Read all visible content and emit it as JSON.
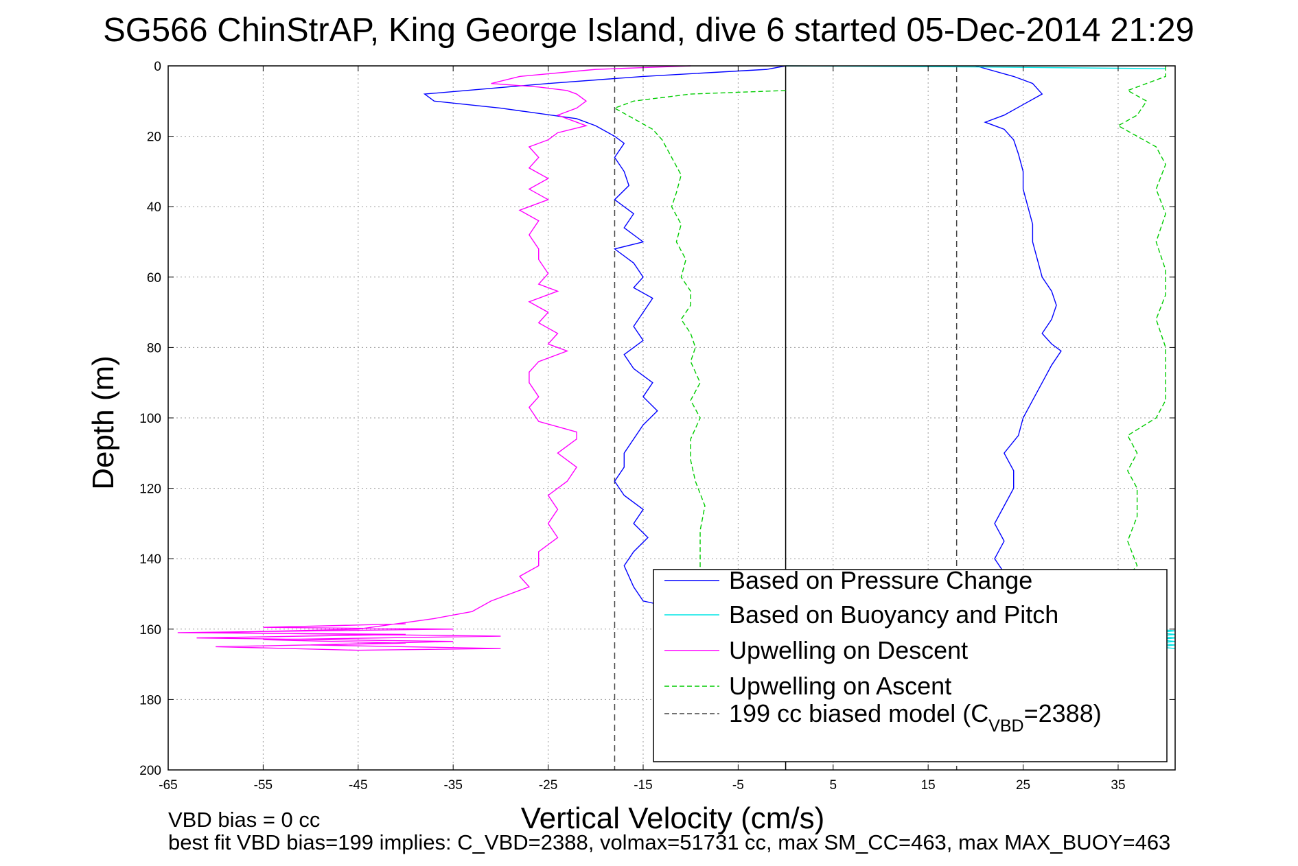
{
  "chart_data": {
    "type": "line",
    "title": "SG566 ChinStrAP, King George Island, dive 6 started 05-Dec-2014 21:29",
    "xlabel": "Vertical Velocity (cm/s)",
    "ylabel": "Depth (m)",
    "xlim": [
      -65,
      41
    ],
    "ylim": [
      0,
      200
    ],
    "y_reversed": true,
    "xticks": [
      -65,
      -55,
      -45,
      -35,
      -25,
      -15,
      -5,
      5,
      15,
      25,
      35
    ],
    "xtick_labels": [
      "-65",
      "-55",
      "-45",
      "-35",
      "-25",
      "-15",
      "-5",
      "5",
      "15",
      "25",
      "35"
    ],
    "yticks": [
      0,
      20,
      40,
      60,
      80,
      100,
      120,
      140,
      160,
      180,
      200
    ],
    "ytick_labels": [
      "0",
      "20",
      "40",
      "60",
      "80",
      "100",
      "120",
      "140",
      "160",
      "180",
      "200"
    ],
    "grid": true,
    "legend_position": "bottom-right",
    "reference_lines": [
      {
        "x": 0,
        "style": "solid",
        "color": "#000000"
      },
      {
        "x": -18,
        "style": "dashed",
        "color": "#444444"
      },
      {
        "x": 18,
        "style": "dashed",
        "color": "#444444"
      }
    ],
    "series": [
      {
        "name": "Based on Pressure Change",
        "color": "#0000ff",
        "dash": "solid",
        "points": [
          [
            0,
            0
          ],
          [
            -2,
            1
          ],
          [
            -15,
            3
          ],
          [
            -25,
            5
          ],
          [
            -38,
            8
          ],
          [
            -37,
            10
          ],
          [
            -30,
            12
          ],
          [
            -22,
            15
          ],
          [
            -20,
            17
          ],
          [
            -18,
            20
          ],
          [
            -17,
            22
          ],
          [
            -18,
            26
          ],
          [
            -17,
            30
          ],
          [
            -16.5,
            34
          ],
          [
            -18,
            38
          ],
          [
            -16,
            42
          ],
          [
            -17,
            46
          ],
          [
            -15,
            50
          ],
          [
            -18,
            52
          ],
          [
            -16,
            56
          ],
          [
            -15,
            60
          ],
          [
            -16,
            63
          ],
          [
            -14,
            66
          ],
          [
            -15,
            70
          ],
          [
            -16,
            74
          ],
          [
            -15,
            78
          ],
          [
            -17,
            82
          ],
          [
            -16,
            86
          ],
          [
            -14,
            90
          ],
          [
            -15,
            94
          ],
          [
            -13.5,
            98
          ],
          [
            -15,
            102
          ],
          [
            -16,
            106
          ],
          [
            -17,
            110
          ],
          [
            -17,
            114
          ],
          [
            -18,
            118
          ],
          [
            -17,
            122
          ],
          [
            -15,
            126
          ],
          [
            -16,
            130
          ],
          [
            -14.5,
            134
          ],
          [
            -16,
            138
          ],
          [
            -17,
            142
          ],
          [
            -16,
            148
          ],
          [
            -15,
            152
          ],
          [
            -10,
            155
          ]
        ],
        "points_right": [
          [
            20,
            0
          ],
          [
            24,
            3
          ],
          [
            26,
            5
          ],
          [
            27,
            8
          ],
          [
            25,
            11
          ],
          [
            23,
            14
          ],
          [
            21,
            16
          ],
          [
            23,
            18
          ],
          [
            24,
            21
          ],
          [
            24.5,
            25
          ],
          [
            25,
            30
          ],
          [
            25,
            35
          ],
          [
            25.5,
            40
          ],
          [
            26,
            45
          ],
          [
            26,
            50
          ],
          [
            26.5,
            55
          ],
          [
            27,
            60
          ],
          [
            28,
            64
          ],
          [
            28.5,
            68
          ],
          [
            28,
            72
          ],
          [
            27,
            76
          ],
          [
            28,
            79
          ],
          [
            29,
            81
          ],
          [
            28,
            85
          ],
          [
            27,
            90
          ],
          [
            26,
            95
          ],
          [
            25,
            100
          ],
          [
            24.5,
            105
          ],
          [
            23,
            110
          ],
          [
            24,
            115
          ],
          [
            24,
            120
          ],
          [
            23,
            125
          ],
          [
            22,
            130
          ],
          [
            23,
            135
          ],
          [
            22,
            140
          ],
          [
            23,
            144
          ]
        ]
      },
      {
        "name": "Based on Buoyancy and Pitch",
        "color": "#00e5e5",
        "dash": "solid",
        "points": [
          [
            0,
            0
          ],
          [
            20,
            0.3
          ],
          [
            40,
            0.8
          ]
        ],
        "points_bottom": [
          [
            39,
            160
          ],
          [
            41,
            160.5
          ],
          [
            39,
            161
          ],
          [
            41,
            161.5
          ],
          [
            39,
            162
          ],
          [
            41,
            162.5
          ],
          [
            39,
            163
          ],
          [
            41,
            163.5
          ],
          [
            39,
            164
          ],
          [
            41,
            164.5
          ],
          [
            39,
            165
          ],
          [
            41,
            165.5
          ]
        ]
      },
      {
        "name": "Upwelling on Descent",
        "color": "#ff00ff",
        "dash": "solid",
        "points": [
          [
            -10,
            0
          ],
          [
            -20,
            1
          ],
          [
            -28,
            3
          ],
          [
            -31,
            5
          ],
          [
            -26,
            6
          ],
          [
            -23,
            7
          ],
          [
            -22,
            8
          ],
          [
            -21,
            10
          ],
          [
            -22,
            12
          ],
          [
            -24,
            14
          ],
          [
            -22,
            16
          ],
          [
            -21,
            17
          ],
          [
            -24,
            19
          ],
          [
            -25,
            21
          ],
          [
            -27,
            23
          ],
          [
            -26,
            26
          ],
          [
            -27,
            29
          ],
          [
            -25,
            32
          ],
          [
            -27,
            35
          ],
          [
            -25,
            38
          ],
          [
            -28,
            41
          ],
          [
            -26,
            44
          ],
          [
            -27,
            48
          ],
          [
            -26,
            52
          ],
          [
            -26,
            55
          ],
          [
            -25,
            59
          ],
          [
            -26,
            62
          ],
          [
            -24,
            64
          ],
          [
            -27,
            67
          ],
          [
            -25,
            70
          ],
          [
            -26,
            73
          ],
          [
            -24,
            76
          ],
          [
            -25,
            79
          ],
          [
            -23,
            81
          ],
          [
            -26,
            84
          ],
          [
            -27,
            87
          ],
          [
            -27,
            90
          ],
          [
            -26,
            94
          ],
          [
            -27,
            97
          ],
          [
            -26,
            101
          ],
          [
            -22,
            104
          ],
          [
            -22,
            106
          ],
          [
            -24,
            110
          ],
          [
            -22,
            114
          ],
          [
            -23,
            118
          ],
          [
            -25,
            122
          ],
          [
            -24,
            126
          ],
          [
            -25,
            130
          ],
          [
            -24,
            134
          ],
          [
            -26,
            138
          ],
          [
            -26,
            142
          ],
          [
            -28,
            145
          ],
          [
            -27,
            148
          ],
          [
            -31,
            152
          ],
          [
            -33,
            155
          ],
          [
            -37,
            157
          ],
          [
            -45,
            160
          ],
          [
            -60,
            161
          ],
          [
            -30,
            162
          ],
          [
            -55,
            163
          ],
          [
            -40,
            164
          ],
          [
            -60,
            165
          ],
          [
            -45,
            166
          ],
          [
            -30,
            165.5
          ],
          [
            -50,
            164.5
          ],
          [
            -35,
            163.5
          ],
          [
            -62,
            162.5
          ],
          [
            -40,
            161.5
          ],
          [
            -64,
            161
          ],
          [
            -50,
            160.5
          ],
          [
            -35,
            160
          ],
          [
            -55,
            159.5
          ],
          [
            -40,
            158.5
          ]
        ]
      },
      {
        "name": "Upwelling on Ascent",
        "color": "#00cc00",
        "dash": "dashed",
        "points": [
          [
            0,
            7
          ],
          [
            -10,
            8
          ],
          [
            -16,
            10
          ],
          [
            -18,
            12
          ],
          [
            -16,
            15
          ],
          [
            -14,
            18
          ],
          [
            -13,
            21
          ],
          [
            -12,
            26
          ],
          [
            -11,
            31
          ],
          [
            -11.5,
            36
          ],
          [
            -12,
            40
          ],
          [
            -11,
            45
          ],
          [
            -11.5,
            50
          ],
          [
            -10.5,
            55
          ],
          [
            -11,
            60
          ],
          [
            -10,
            64
          ],
          [
            -10,
            68
          ],
          [
            -11,
            72
          ],
          [
            -10,
            76
          ],
          [
            -9.5,
            80
          ],
          [
            -10,
            84
          ],
          [
            -9,
            90
          ],
          [
            -10,
            95
          ],
          [
            -9,
            100
          ],
          [
            -10,
            106
          ],
          [
            -10,
            112
          ],
          [
            -9.5,
            118
          ],
          [
            -8.5,
            125
          ],
          [
            -9,
            132
          ],
          [
            -9,
            140
          ],
          [
            -9,
            148
          ],
          [
            -10,
            153
          ]
        ],
        "points_right": [
          [
            40,
            0
          ],
          [
            40,
            3
          ],
          [
            36,
            7
          ],
          [
            38,
            10
          ],
          [
            37,
            14
          ],
          [
            35,
            17
          ],
          [
            37,
            20
          ],
          [
            39,
            23
          ],
          [
            40,
            28
          ],
          [
            39,
            35
          ],
          [
            40,
            42
          ],
          [
            39,
            50
          ],
          [
            40,
            58
          ],
          [
            40,
            65
          ],
          [
            39,
            72
          ],
          [
            40,
            80
          ],
          [
            40,
            88
          ],
          [
            40,
            95
          ],
          [
            39,
            100
          ],
          [
            36,
            105
          ],
          [
            37,
            110
          ],
          [
            36,
            115
          ],
          [
            37,
            120
          ],
          [
            37,
            128
          ],
          [
            36,
            135
          ],
          [
            37,
            142
          ],
          [
            36,
            145
          ]
        ]
      }
    ],
    "legend": [
      {
        "label": "Based on Pressure Change",
        "color": "#0000ff",
        "dash": "solid"
      },
      {
        "label": "Based on Buoyancy and Pitch",
        "color": "#00e5e5",
        "dash": "solid"
      },
      {
        "label": "Upwelling on Descent",
        "color": "#ff00ff",
        "dash": "solid"
      },
      {
        "label": "Upwelling on Ascent",
        "color": "#00cc00",
        "dash": "dashed"
      },
      {
        "label": "199 cc biased model (C",
        "sub": "VBD",
        "label_end": "=2388)",
        "color": "#444444",
        "dash": "dashed"
      }
    ],
    "annotations": [
      "VBD bias = 0 cc",
      "best fit VBD bias=199 implies: C_VBD=2388, volmax=51731 cc, max SM_CC=463, max MAX_BUOY=463"
    ]
  }
}
